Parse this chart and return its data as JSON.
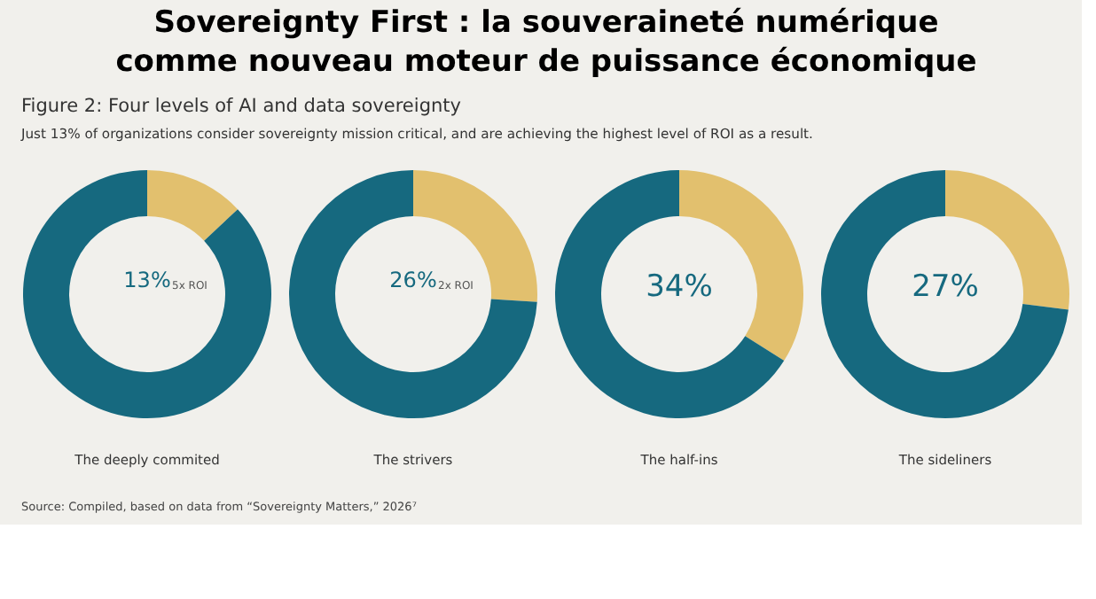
{
  "chart_data": [
    {
      "type": "donut",
      "title": "Sovereignty First : la souveraineté numérique comme nouveau moteur de puissance économique",
      "subtitle": "Figure 2: Four levels of AI and data sovereignty",
      "annotations": [
        "Just 13% of organizations consider sovereignty mission critical, and are achieving the highest level of ROI as a result.",
        "5x ROI"
      ],
      "categories": [
        null,
        null
      ],
      "values": [
        13,
        87
      ],
      "colors": [
        "#e2c06e",
        "#16697f"
      ],
      "value_labels": [
        "13%",
        null
      ],
      "xlabel": "The deeply commited"
    },
    {
      "type": "donut",
      "categories": [
        null,
        null
      ],
      "values": [
        26,
        74
      ],
      "colors": [
        "#e2c06e",
        "#16697f"
      ],
      "value_labels": [
        "26%",
        null
      ],
      "xlabel": "The strivers",
      "annotations": [
        "2x ROI"
      ]
    },
    {
      "type": "donut",
      "categories": [
        null,
        null
      ],
      "values": [
        34,
        66
      ],
      "colors": [
        "#e2c06e",
        "#16697f"
      ],
      "value_labels": [
        "34%",
        null
      ],
      "xlabel": "The half-ins"
    },
    {
      "type": "donut",
      "categories": [
        null,
        null
      ],
      "values": [
        27,
        73
      ],
      "colors": [
        "#e2c06e",
        "#16697f"
      ],
      "value_labels": [
        "27%",
        null
      ],
      "xlabel": "The sideliners",
      "annotations": [
        "Source: Compiled, based on data from “Sovereignty Matters,” 2026⁷"
      ]
    }
  ]
}
